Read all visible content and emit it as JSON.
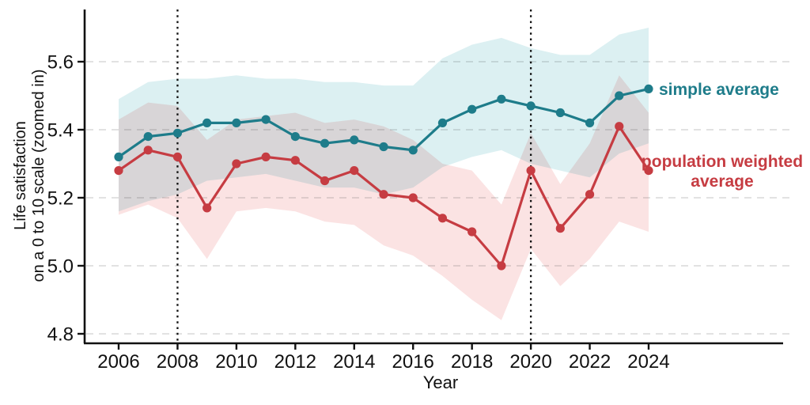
{
  "chart_data": {
    "type": "line",
    "title": "",
    "xlabel": "Year",
    "ylabel_lines": [
      "Life satisfaction",
      "on a 0 to 10 scale (zoomed in)"
    ],
    "x": [
      2006,
      2007,
      2008,
      2009,
      2010,
      2011,
      2012,
      2013,
      2014,
      2015,
      2016,
      2017,
      2018,
      2019,
      2020,
      2021,
      2022,
      2023,
      2024
    ],
    "x_ticks": [
      2006,
      2008,
      2010,
      2012,
      2014,
      2016,
      2018,
      2020,
      2022,
      2024
    ],
    "x_tick_labels": [
      "2006",
      "2008",
      "2010",
      "2012",
      "2014",
      "2016",
      "2018",
      "2020",
      "2022",
      "2024"
    ],
    "grid_values": [
      4.8,
      5.0,
      5.2,
      5.4,
      5.6
    ],
    "y_tick_labels": [
      "4.8",
      "5.0",
      "5.2",
      "5.4",
      "5.6"
    ],
    "ylim": [
      4.76,
      5.76
    ],
    "xlim": [
      2004.8,
      2029.0
    ],
    "grid": "horizontal-dashed",
    "vline_years": [
      2008,
      2020
    ],
    "legend_position": "right-of-last-point",
    "series": [
      {
        "name": "simple average",
        "label_lines": [
          "simple average"
        ],
        "color": "#1e7c8a",
        "band_color": "#dcf0f2",
        "values": [
          5.32,
          5.38,
          5.39,
          5.42,
          5.42,
          5.43,
          5.38,
          5.36,
          5.37,
          5.35,
          5.34,
          5.42,
          5.46,
          5.49,
          5.47,
          5.45,
          5.42,
          5.5,
          5.52
        ],
        "band_upper": [
          5.49,
          5.54,
          5.55,
          5.55,
          5.56,
          5.55,
          5.55,
          5.54,
          5.54,
          5.53,
          5.53,
          5.61,
          5.65,
          5.67,
          5.64,
          5.62,
          5.62,
          5.68,
          5.7
        ],
        "band_lower": [
          5.16,
          5.19,
          5.21,
          5.25,
          5.26,
          5.27,
          5.25,
          5.23,
          5.23,
          5.21,
          5.23,
          5.29,
          5.32,
          5.34,
          5.3,
          5.28,
          5.26,
          5.33,
          5.36
        ]
      },
      {
        "name": "population weighted average",
        "label_lines": [
          "population weighted",
          "average"
        ],
        "color": "#c63c42",
        "band_color": "#fbe3e3",
        "values": [
          5.28,
          5.34,
          5.32,
          5.17,
          5.3,
          5.32,
          5.31,
          5.25,
          5.28,
          5.21,
          5.2,
          5.14,
          5.1,
          5.0,
          5.28,
          5.11,
          5.21,
          5.41,
          5.28
        ],
        "band_upper": [
          5.43,
          5.48,
          5.47,
          5.37,
          5.43,
          5.44,
          5.45,
          5.42,
          5.43,
          5.41,
          5.37,
          5.3,
          5.28,
          5.18,
          5.39,
          5.24,
          5.36,
          5.56,
          5.45
        ],
        "band_lower": [
          5.15,
          5.18,
          5.14,
          5.02,
          5.16,
          5.17,
          5.16,
          5.13,
          5.12,
          5.06,
          5.03,
          4.97,
          4.9,
          4.84,
          5.05,
          4.94,
          5.02,
          5.13,
          5.1
        ]
      }
    ],
    "colors": {
      "axis": "#111111",
      "tick_text": "#111111",
      "gridline": "#d9d9d9",
      "vline": "#111111",
      "background": "#ffffff"
    }
  }
}
